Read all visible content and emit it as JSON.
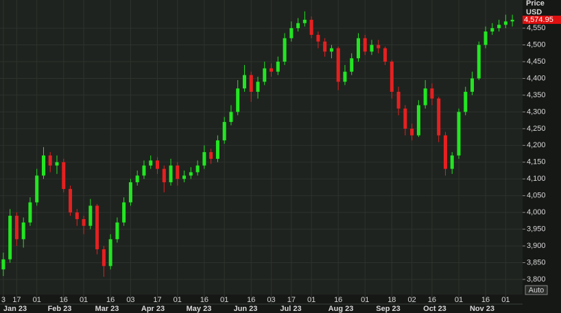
{
  "chart_data": {
    "type": "candlestick",
    "axis_title": "Price",
    "axis_unit": "USD",
    "button": "Auto",
    "up_color": "#22e622",
    "down_color": "#e62020",
    "categories": [
      "3",
      null,
      "17",
      null,
      null,
      "01",
      null,
      null,
      null,
      "16",
      null,
      null,
      "01",
      null,
      null,
      null,
      "16",
      null,
      null,
      "03",
      null,
      null,
      null,
      "17",
      null,
      null,
      "01",
      null,
      null,
      null,
      "16",
      null,
      null,
      "01",
      null,
      null,
      null,
      "16",
      null,
      null,
      "03",
      null,
      null,
      "17",
      null,
      null,
      "01",
      null,
      null,
      null,
      "16",
      null,
      null,
      null,
      "01",
      null,
      null,
      null,
      "18",
      null,
      null,
      "02",
      null,
      null,
      "16",
      null,
      null,
      null,
      "01",
      null,
      null,
      null,
      "16",
      null,
      null,
      "01",
      null
    ],
    "months": [
      "Jan 23",
      "Feb 23",
      "Mar 23",
      "Apr 23",
      "May 23",
      "Jun 23",
      "Jul 23",
      "Aug 23",
      "Sep 23",
      "Oct 23",
      "Nov 23"
    ],
    "open": [
      3830,
      3860,
      3990,
      3920,
      3970,
      4030,
      4110,
      4170,
      4140,
      4150,
      4070,
      4000,
      3980,
      3960,
      4020,
      3890,
      3840,
      3920,
      3970,
      4030,
      4090,
      4110,
      4140,
      4155,
      4130,
      4090,
      4140,
      4100,
      4110,
      4120,
      4140,
      4180,
      4160,
      4215,
      4270,
      4300,
      4370,
      4410,
      4360,
      4390,
      4430,
      4420,
      4450,
      4520,
      4550,
      4565,
      4575,
      4530,
      4510,
      4480,
      4490,
      4390,
      4420,
      4460,
      4520,
      4480,
      4500,
      4490,
      4450,
      4360,
      4310,
      4250,
      4230,
      4320,
      4370,
      4340,
      4230,
      4130,
      4170,
      4300,
      4360,
      4400,
      4500,
      4540,
      4550,
      4560,
      4570
    ],
    "high": [
      3880,
      4010,
      4000,
      3985,
      4045,
      4130,
      4195,
      4180,
      4170,
      4160,
      4080,
      4010,
      3990,
      4040,
      4025,
      3900,
      3935,
      3985,
      4045,
      4100,
      4125,
      4155,
      4170,
      4165,
      4140,
      4160,
      4150,
      4125,
      4135,
      4155,
      4200,
      4190,
      4230,
      4285,
      4320,
      4395,
      4440,
      4420,
      4405,
      4450,
      4445,
      4465,
      4535,
      4570,
      4580,
      4600,
      4585,
      4540,
      4520,
      4500,
      4495,
      4440,
      4475,
      4535,
      4530,
      4515,
      4515,
      4495,
      4455,
      4375,
      4320,
      4265,
      4335,
      4395,
      4385,
      4345,
      4240,
      4180,
      4310,
      4375,
      4420,
      4510,
      4555,
      4565,
      4575,
      4590,
      4590
    ],
    "low": [
      3810,
      3850,
      3900,
      3895,
      3960,
      4020,
      4100,
      4120,
      4115,
      4060,
      3990,
      3960,
      3935,
      3950,
      3875,
      3808,
      3830,
      3910,
      3960,
      4020,
      4080,
      4100,
      4130,
      4115,
      4060,
      4080,
      4080,
      4090,
      4100,
      4110,
      4130,
      4145,
      4150,
      4205,
      4260,
      4290,
      4360,
      4330,
      4340,
      4380,
      4405,
      4410,
      4440,
      4510,
      4540,
      4555,
      4520,
      4490,
      4465,
      4460,
      4365,
      4380,
      4410,
      4450,
      4470,
      4470,
      4475,
      4440,
      4340,
      4290,
      4230,
      4215,
      4225,
      4310,
      4320,
      4210,
      4110,
      4115,
      4160,
      4290,
      4350,
      4395,
      4490,
      4530,
      4540,
      4550,
      4555
    ],
    "close": [
      3860,
      3990,
      3920,
      3970,
      4030,
      4110,
      4170,
      4140,
      4150,
      4070,
      4000,
      3980,
      3960,
      4020,
      3890,
      3840,
      3920,
      3970,
      4030,
      4090,
      4110,
      4140,
      4155,
      4130,
      4090,
      4140,
      4100,
      4110,
      4120,
      4140,
      4180,
      4160,
      4215,
      4270,
      4300,
      4370,
      4410,
      4360,
      4390,
      4430,
      4420,
      4450,
      4520,
      4550,
      4565,
      4575,
      4530,
      4510,
      4480,
      4490,
      4390,
      4420,
      4460,
      4520,
      4480,
      4500,
      4490,
      4450,
      4360,
      4310,
      4250,
      4230,
      4320,
      4370,
      4340,
      4230,
      4130,
      4170,
      4300,
      4360,
      4400,
      4500,
      4540,
      4550,
      4560,
      4570,
      4575
    ],
    "ylim": [
      3755,
      4634
    ],
    "yticks": [
      {
        "value": 3800,
        "label": "3,800"
      },
      {
        "value": 3850,
        "label": "3,850"
      },
      {
        "value": 3900,
        "label": "3,900"
      },
      {
        "value": 3950,
        "label": "3,950"
      },
      {
        "value": 4000,
        "label": "4,000"
      },
      {
        "value": 4050,
        "label": "4,050"
      },
      {
        "value": 4100,
        "label": "4,100"
      },
      {
        "value": 4150,
        "label": "4,150"
      },
      {
        "value": 4200,
        "label": "4,200"
      },
      {
        "value": 4250,
        "label": "4,250"
      },
      {
        "value": 4300,
        "label": "4,300"
      },
      {
        "value": 4350,
        "label": "4,350"
      },
      {
        "value": 4400,
        "label": "4,400"
      },
      {
        "value": 4450,
        "label": "4,450"
      },
      {
        "value": 4500,
        "label": "4,500"
      },
      {
        "value": 4550,
        "label": "4,550"
      }
    ],
    "last_price": {
      "value": 4574.95,
      "label": "4,574.95"
    },
    "grid": true
  }
}
